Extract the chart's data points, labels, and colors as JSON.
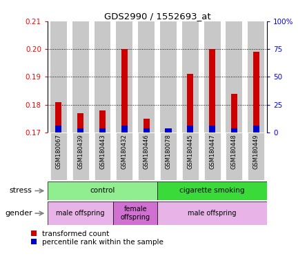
{
  "title": "GDS2990 / 1552693_at",
  "samples": [
    "GSM180067",
    "GSM180439",
    "GSM180443",
    "GSM180432",
    "GSM180446",
    "GSM180078",
    "GSM180445",
    "GSM180447",
    "GSM180448",
    "GSM180449"
  ],
  "red_values": [
    0.181,
    0.177,
    0.178,
    0.2,
    0.175,
    0.171,
    0.191,
    0.2,
    0.184,
    0.199
  ],
  "blue_values": [
    0.1725,
    0.1715,
    0.1715,
    0.1725,
    0.1715,
    0.1715,
    0.1725,
    0.1725,
    0.1715,
    0.1725
  ],
  "ymin": 0.17,
  "ymax": 0.21,
  "yticks": [
    0.17,
    0.18,
    0.19,
    0.2,
    0.21
  ],
  "ytick_labels": [
    "0.17",
    "0.18",
    "0.19",
    "0.20",
    "0.21"
  ],
  "y2min": 0,
  "y2max": 100,
  "y2ticks": [
    0,
    25,
    50,
    75,
    100
  ],
  "y2ticklabels": [
    "0",
    "25",
    "50",
    "75",
    "100%"
  ],
  "stress_groups": [
    {
      "label": "control",
      "start": 0,
      "end": 5,
      "color": "#90EE90"
    },
    {
      "label": "cigarette smoking",
      "start": 5,
      "end": 10,
      "color": "#3ADA3A"
    }
  ],
  "gender_groups": [
    {
      "label": "male offspring",
      "start": 0,
      "end": 3,
      "color": "#E8B4E8"
    },
    {
      "label": "female\noffspring",
      "start": 3,
      "end": 5,
      "color": "#D070D0"
    },
    {
      "label": "male offspring",
      "start": 5,
      "end": 10,
      "color": "#E8B4E8"
    }
  ],
  "red_color": "#CC0000",
  "blue_color": "#0000CC",
  "bar_bg_color": "#C8C8C8",
  "stress_label": "stress",
  "gender_label": "gender",
  "legend_red": "transformed count",
  "legend_blue": "percentile rank within the sample",
  "grid_lines": [
    0.18,
    0.19,
    0.2
  ]
}
